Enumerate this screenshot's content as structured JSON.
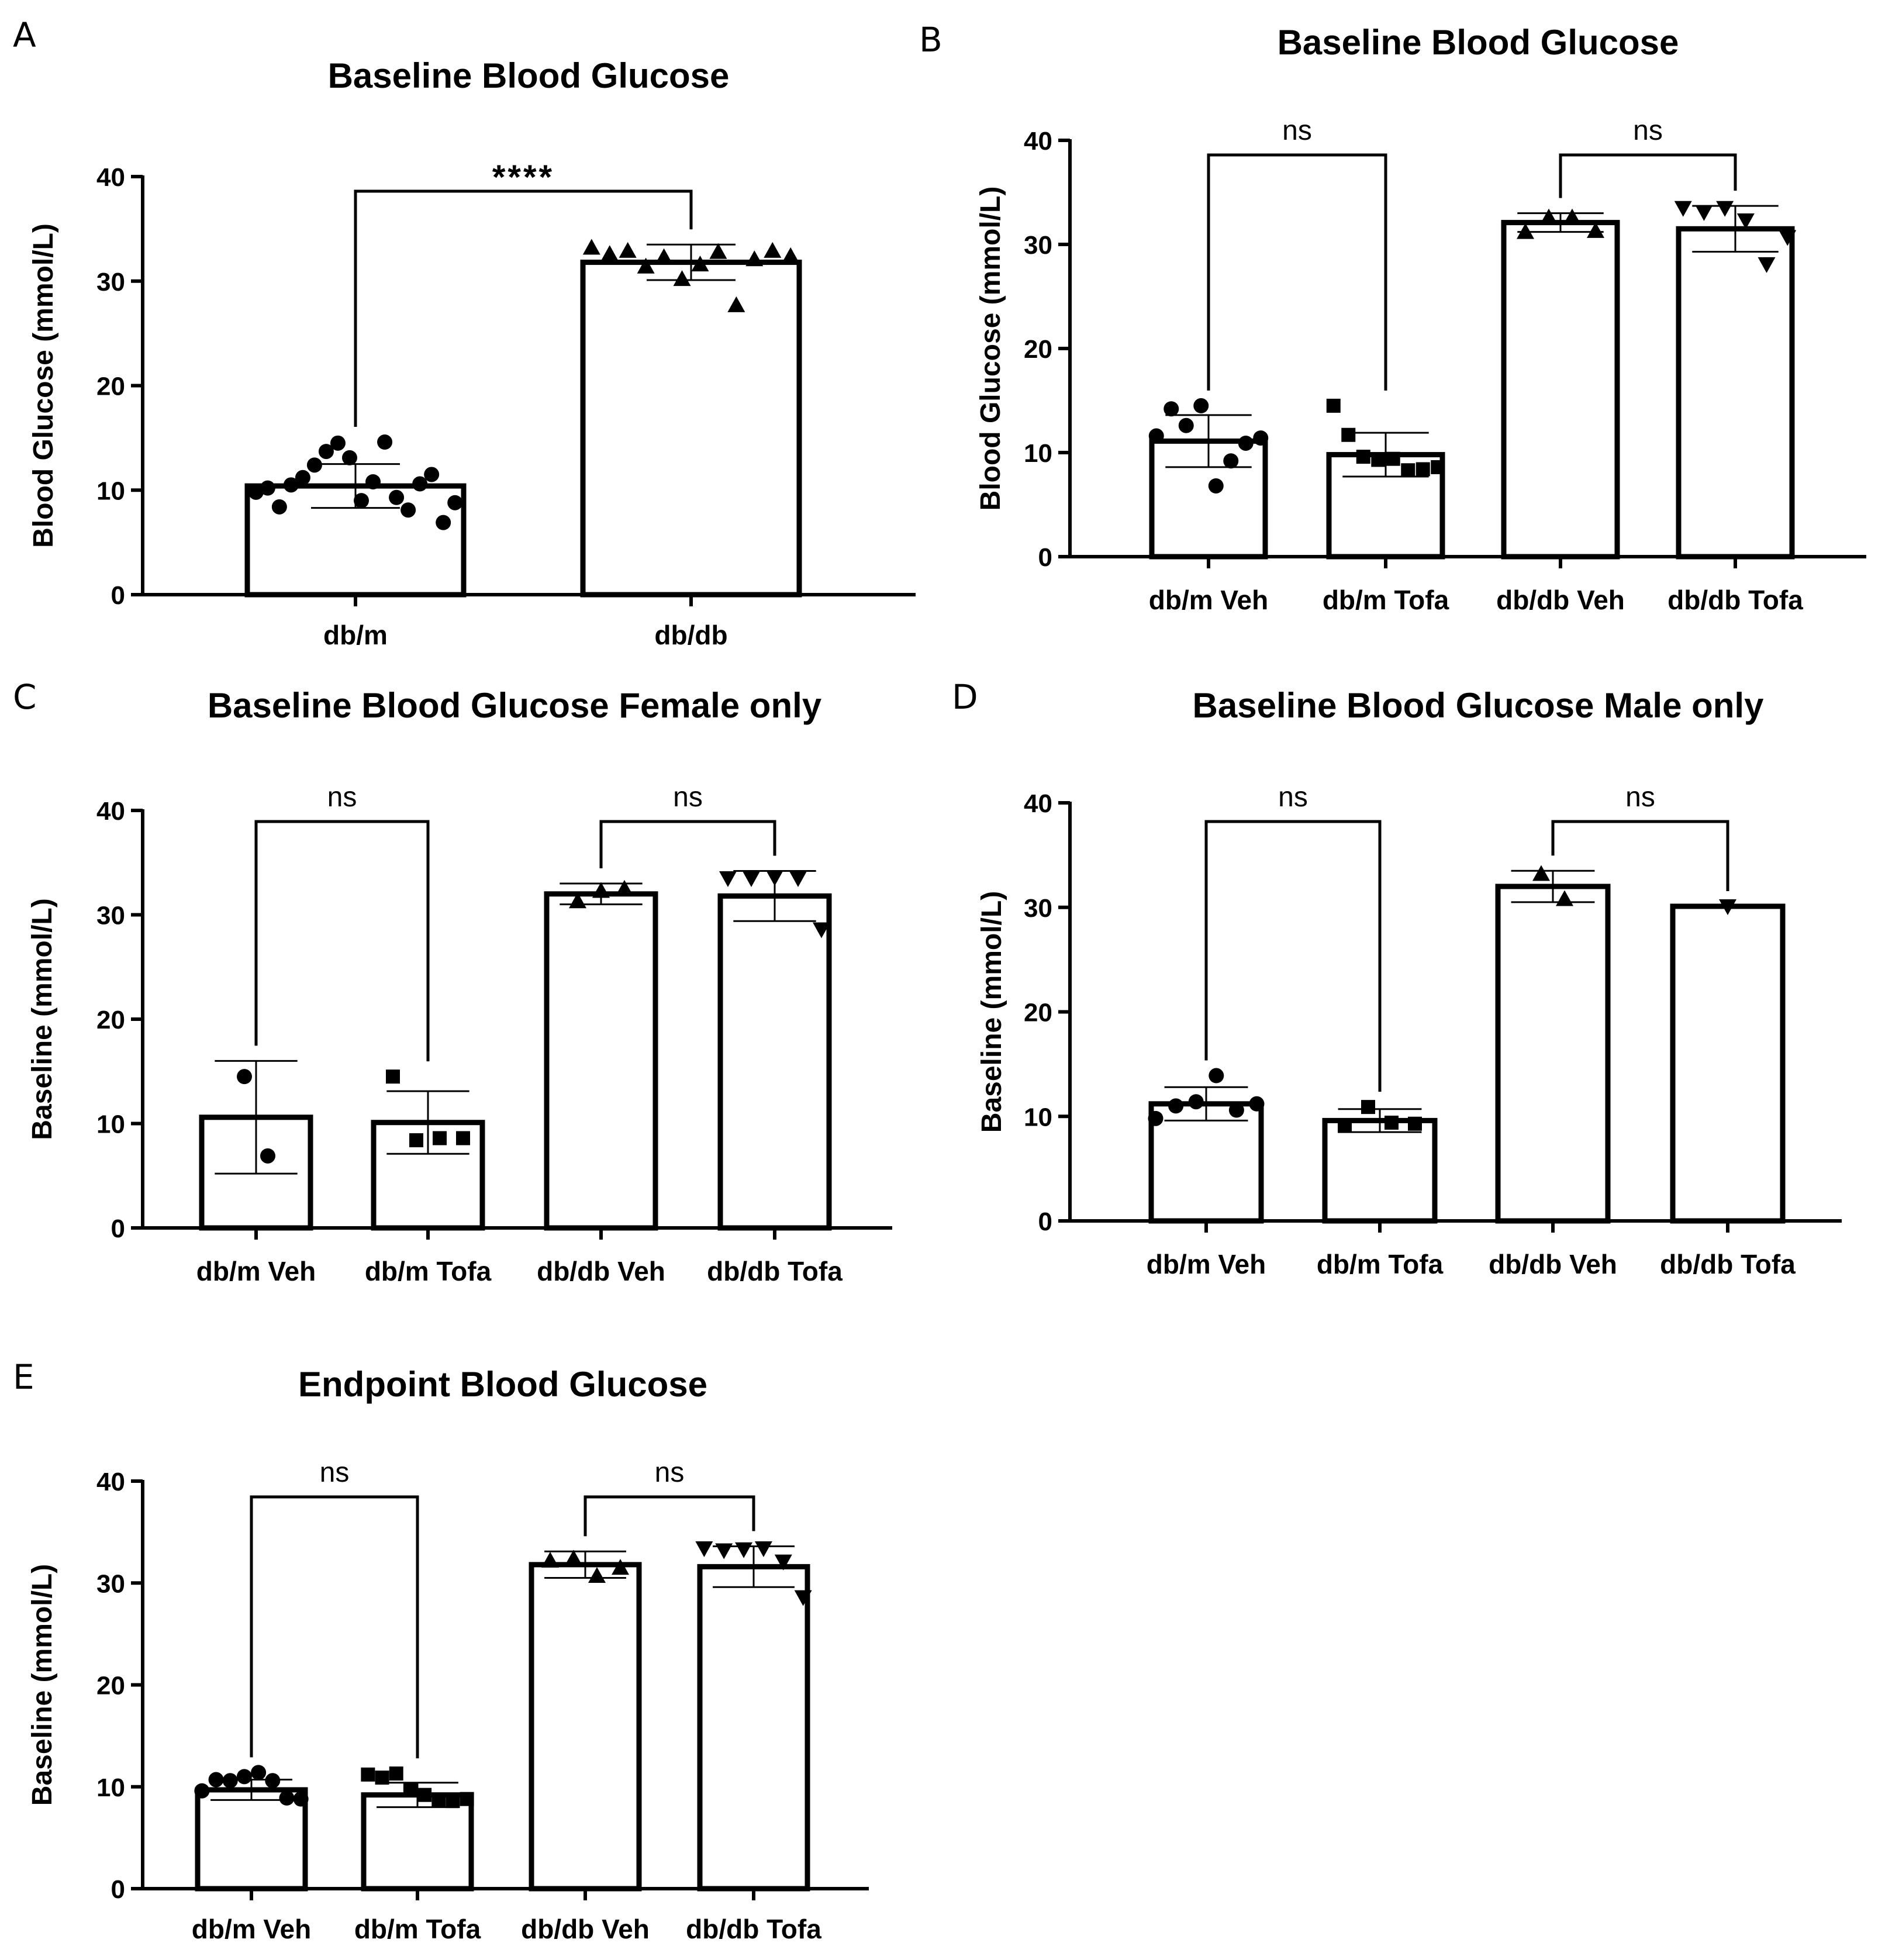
{
  "chart_data": [
    {
      "panel": "A",
      "type": "bar",
      "title": "Baseline  Blood  Glucose",
      "ylabel": "Blood Glucose  (mmol/L)",
      "ylim": [
        0,
        40
      ],
      "yticks": [
        "0",
        "10",
        "20",
        "30",
        "40"
      ],
      "categories": [
        "db/m",
        "db/db"
      ],
      "values": [
        10.4,
        31.8
      ],
      "sd": [
        2.1,
        1.7
      ],
      "markers": [
        "circle",
        "triangle-up"
      ],
      "points": [
        [
          9.8,
          10.2,
          8.4,
          10.5,
          11.2,
          12.4,
          13.7,
          14.5,
          13.1,
          9.0,
          10.8,
          14.6,
          9.3,
          8.1,
          10.6,
          11.5,
          6.9,
          8.8
        ],
        [
          33.2,
          32.6,
          32.9,
          31.4,
          32.3,
          30.2,
          31.6,
          32.8,
          27.7,
          32.1,
          32.9,
          32.4
        ]
      ],
      "comparisons": [
        {
          "groups": [
            0,
            1
          ],
          "label": "****"
        }
      ]
    },
    {
      "panel": "B",
      "type": "bar",
      "title": "Baseline  Blood  Glucose",
      "ylabel": "Blood Glucose  (mmol/L)",
      "ylim": [
        0,
        40
      ],
      "yticks": [
        "0",
        "10",
        "20",
        "30",
        "40"
      ],
      "categories": [
        "db/m Veh",
        "db/m Tofa",
        "db/db Veh",
        "db/db Tofa"
      ],
      "values": [
        11.1,
        9.8,
        32.1,
        31.5
      ],
      "sd": [
        2.5,
        2.1,
        0.9,
        2.2
      ],
      "markers": [
        "circle",
        "square",
        "triangle-up",
        "triangle-down"
      ],
      "points": [
        [
          11.6,
          14.2,
          12.6,
          14.5,
          6.8,
          9.2,
          10.9,
          11.4
        ],
        [
          14.5,
          11.7,
          9.6,
          9.3,
          9.4,
          8.3,
          8.4,
          8.6
        ],
        [
          31.2,
          32.6,
          32.6,
          31.3
        ],
        [
          33.5,
          33.1,
          33.5,
          32.3,
          28.1,
          30.7
        ]
      ],
      "comparisons": [
        {
          "groups": [
            0,
            1
          ],
          "label": "ns"
        },
        {
          "groups": [
            2,
            3
          ],
          "label": "ns"
        }
      ]
    },
    {
      "panel": "C",
      "type": "bar",
      "title": "Baseline Blood Glucose Female only",
      "ylabel": "Baseline (mmol/L)",
      "ylim": [
        0,
        40
      ],
      "yticks": [
        "0",
        "10",
        "20",
        "30",
        "40"
      ],
      "categories": [
        "db/m Veh",
        "db/m Tofa",
        "db/db Veh",
        "db/db Tofa"
      ],
      "values": [
        10.6,
        10.1,
        32.0,
        31.8
      ],
      "sd": [
        5.4,
        3.0,
        1.0,
        2.4
      ],
      "markers": [
        "circle",
        "square",
        "triangle-up",
        "triangle-down"
      ],
      "points": [
        [
          14.5,
          6.9
        ],
        [
          14.5,
          8.4,
          8.6,
          8.6
        ],
        [
          31.3,
          32.3,
          32.5
        ],
        [
          33.5,
          33.5,
          33.6,
          33.5,
          28.6
        ]
      ],
      "comparisons": [
        {
          "groups": [
            0,
            1
          ],
          "label": "ns"
        },
        {
          "groups": [
            2,
            3
          ],
          "label": "ns"
        }
      ]
    },
    {
      "panel": "D",
      "type": "bar",
      "title": "Baseline Blood Glucose Male only",
      "ylabel": "Baseline (mmol/L)",
      "ylim": [
        0,
        40
      ],
      "yticks": [
        "0",
        "10",
        "20",
        "30",
        "40"
      ],
      "categories": [
        "db/m Veh",
        "db/m Tofa",
        "db/db Veh",
        "db/db Tofa"
      ],
      "values": [
        11.2,
        9.6,
        32.0,
        30.1
      ],
      "sd": [
        1.6,
        1.1,
        1.5,
        0
      ],
      "markers": [
        "circle",
        "square",
        "triangle-up",
        "triangle-down"
      ],
      "points": [
        [
          9.8,
          11.0,
          11.4,
          13.9,
          10.6,
          11.2
        ],
        [
          9.1,
          10.9,
          9.4,
          9.3
        ],
        [
          33.2,
          30.8
        ],
        [
          30.1
        ]
      ],
      "comparisons": [
        {
          "groups": [
            0,
            1
          ],
          "label": "ns"
        },
        {
          "groups": [
            2,
            3
          ],
          "label": "ns"
        }
      ]
    },
    {
      "panel": "E",
      "type": "bar",
      "title": "Endpoint Blood Glucose",
      "ylabel": "Baseline (mmol/L)",
      "ylim": [
        0,
        40
      ],
      "yticks": [
        "0",
        "10",
        "20",
        "30",
        "40"
      ],
      "categories": [
        "db/m Veh",
        "db/m Tofa",
        "db/db Veh",
        "db/db Tofa"
      ],
      "values": [
        9.7,
        9.2,
        31.8,
        31.6
      ],
      "sd": [
        1.0,
        1.2,
        1.3,
        2.0
      ],
      "markers": [
        "circle",
        "square",
        "triangle-up",
        "triangle-down"
      ],
      "points": [
        [
          9.6,
          10.7,
          10.6,
          11.0,
          11.4,
          10.6,
          8.9,
          8.8
        ],
        [
          11.2,
          10.9,
          11.3,
          9.7,
          9.2,
          8.7,
          8.6,
          8.8
        ],
        [
          32.2,
          32.4,
          30.7,
          31.5
        ],
        [
          33.4,
          33.2,
          33.3,
          33.4,
          32.1,
          28.6
        ]
      ],
      "comparisons": [
        {
          "groups": [
            0,
            1
          ],
          "label": "ns"
        },
        {
          "groups": [
            2,
            3
          ],
          "label": "ns"
        }
      ]
    }
  ]
}
